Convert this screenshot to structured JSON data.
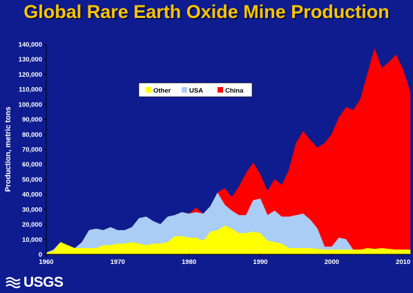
{
  "title": "Global Rare Earth Oxide Mine Production",
  "logo": {
    "text": "USGS"
  },
  "colors": {
    "background": "#0f1c8f",
    "title": "#f7c400",
    "other": "#ffff00",
    "usa": "#a9cdf5",
    "china": "#ff0000"
  },
  "chart_data": {
    "type": "area",
    "stacked": false,
    "title": "Global Rare Earth Oxide Mine Production",
    "xlabel": "",
    "ylabel": "Production, metric tons",
    "xlim": [
      1960,
      2011
    ],
    "ylim": [
      0,
      140000
    ],
    "xticks": [
      1960,
      1970,
      1980,
      1990,
      2000,
      2010
    ],
    "yticks": [
      0,
      10000,
      20000,
      30000,
      40000,
      50000,
      60000,
      70000,
      80000,
      90000,
      100000,
      110000,
      120000,
      130000,
      140000
    ],
    "ytick_labels": [
      "0",
      "10,000",
      "20,000",
      "30,000",
      "40,000",
      "50,000",
      "60,000",
      "70,000",
      "80,000",
      "90,000",
      "100,000",
      "110,000",
      "120,000",
      "130,000",
      "140,000"
    ],
    "grid": false,
    "legend": {
      "position": "upper-left",
      "entries": [
        "Other",
        "USA",
        "China"
      ]
    },
    "x": [
      1960,
      1961,
      1962,
      1963,
      1964,
      1965,
      1966,
      1967,
      1968,
      1969,
      1970,
      1971,
      1972,
      1973,
      1974,
      1975,
      1976,
      1977,
      1978,
      1979,
      1980,
      1981,
      1982,
      1983,
      1984,
      1985,
      1986,
      1987,
      1988,
      1989,
      1990,
      1991,
      1992,
      1993,
      1994,
      1995,
      1996,
      1997,
      1998,
      1999,
      2000,
      2001,
      2002,
      2003,
      2004,
      2005,
      2006,
      2007,
      2008,
      2009,
      2010,
      2011
    ],
    "series": [
      {
        "name": "China",
        "color": "#ff0000",
        "values": [
          1000,
          3000,
          8000,
          6000,
          4000,
          8000,
          16000,
          17000,
          16000,
          18000,
          16000,
          16000,
          18000,
          24000,
          25000,
          22000,
          20000,
          25000,
          26000,
          28000,
          27000,
          31000,
          27000,
          32000,
          41000,
          44000,
          38000,
          45000,
          54000,
          61000,
          53000,
          42000,
          50000,
          46000,
          56000,
          74000,
          82000,
          76000,
          71000,
          74000,
          80000,
          91000,
          98000,
          96000,
          103000,
          120000,
          137000,
          124000,
          128000,
          133000,
          123000,
          108000
        ]
      },
      {
        "name": "USA",
        "color": "#a9cdf5",
        "values": [
          1000,
          3000,
          8000,
          6000,
          4000,
          8000,
          16000,
          17000,
          16000,
          18000,
          16000,
          16000,
          18000,
          24000,
          25000,
          22000,
          20000,
          25000,
          26000,
          28000,
          27000,
          28000,
          27000,
          32000,
          41000,
          33000,
          29000,
          26000,
          26000,
          36000,
          37000,
          26000,
          29000,
          25000,
          25000,
          26000,
          27000,
          23000,
          17000,
          5000,
          5000,
          11000,
          10000,
          3000,
          3000,
          3000,
          3000,
          3000,
          3000,
          3000,
          3000,
          3000
        ]
      },
      {
        "name": "Other",
        "color": "#ffff00",
        "values": [
          1000,
          2000,
          8000,
          6000,
          4000,
          4000,
          4000,
          4000,
          6000,
          6000,
          7000,
          7000,
          8000,
          7000,
          6000,
          7000,
          7000,
          8000,
          12000,
          12000,
          11000,
          11000,
          9000,
          15000,
          16000,
          19000,
          17000,
          14000,
          14000,
          15000,
          14000,
          9000,
          8000,
          7000,
          4000,
          4000,
          4000,
          4000,
          3500,
          3000,
          3000,
          3000,
          3000,
          3000,
          3000,
          4000,
          3500,
          4000,
          3500,
          3000,
          3000,
          3000
        ]
      }
    ]
  }
}
